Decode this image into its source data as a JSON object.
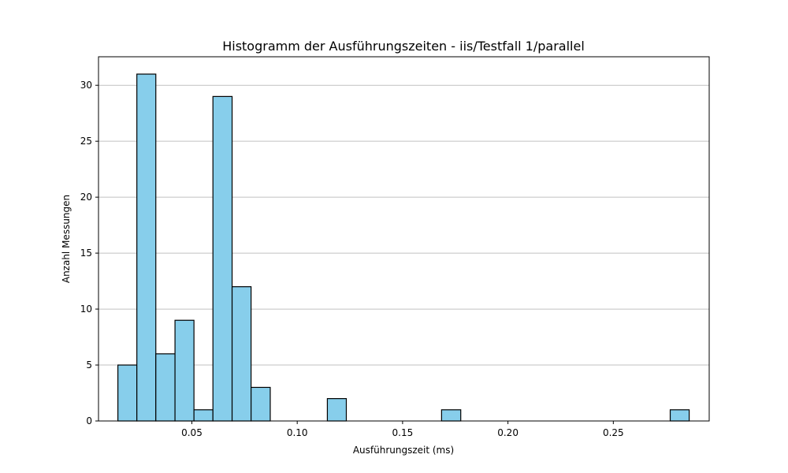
{
  "chart_data": {
    "type": "bar",
    "title": "Histogramm der Ausführungszeiten - iis/Testfall 1/parallel",
    "xlabel": "Ausführungszeit (ms)",
    "ylabel": "Anzahl Messungen",
    "xlim": [
      0.0057,
      0.2955
    ],
    "ylim": [
      0,
      32.55
    ],
    "xticks": [
      0.05,
      0.1,
      0.15,
      0.2,
      0.25
    ],
    "xtick_labels": [
      "0.05",
      "0.10",
      "0.15",
      "0.20",
      "0.25"
    ],
    "yticks": [
      0,
      5,
      10,
      15,
      20,
      25,
      30
    ],
    "ytick_labels": [
      "0",
      "5",
      "10",
      "15",
      "20",
      "25",
      "30"
    ],
    "grid": "y",
    "colors": {
      "bar_fill": "#87CEEB",
      "bar_edge": "#000000",
      "grid": "#c0c0c0"
    },
    "bins": [
      {
        "x0": 0.0149,
        "x1": 0.0239,
        "value": 5
      },
      {
        "x0": 0.0239,
        "x1": 0.0329,
        "value": 31
      },
      {
        "x0": 0.0329,
        "x1": 0.042,
        "value": 6
      },
      {
        "x0": 0.042,
        "x1": 0.051,
        "value": 9
      },
      {
        "x0": 0.051,
        "x1": 0.06,
        "value": 1
      },
      {
        "x0": 0.06,
        "x1": 0.0691,
        "value": 29
      },
      {
        "x0": 0.0691,
        "x1": 0.0781,
        "value": 12
      },
      {
        "x0": 0.0781,
        "x1": 0.0872,
        "value": 3
      },
      {
        "x0": 0.0872,
        "x1": 0.0962,
        "value": 0
      },
      {
        "x0": 0.0962,
        "x1": 0.1052,
        "value": 0
      },
      {
        "x0": 0.1052,
        "x1": 0.1143,
        "value": 0
      },
      {
        "x0": 0.1143,
        "x1": 0.1233,
        "value": 2
      },
      {
        "x0": 0.1233,
        "x1": 0.1324,
        "value": 0
      },
      {
        "x0": 0.1324,
        "x1": 0.1414,
        "value": 0
      },
      {
        "x0": 0.1414,
        "x1": 0.1504,
        "value": 0
      },
      {
        "x0": 0.1504,
        "x1": 0.1595,
        "value": 0
      },
      {
        "x0": 0.1595,
        "x1": 0.1685,
        "value": 0
      },
      {
        "x0": 0.1685,
        "x1": 0.1776,
        "value": 1
      },
      {
        "x0": 0.1776,
        "x1": 0.1866,
        "value": 0
      },
      {
        "x0": 0.1866,
        "x1": 0.1956,
        "value": 0
      },
      {
        "x0": 0.1956,
        "x1": 0.2047,
        "value": 0
      },
      {
        "x0": 0.2047,
        "x1": 0.2137,
        "value": 0
      },
      {
        "x0": 0.2137,
        "x1": 0.2228,
        "value": 0
      },
      {
        "x0": 0.2228,
        "x1": 0.2318,
        "value": 0
      },
      {
        "x0": 0.2318,
        "x1": 0.2408,
        "value": 0
      },
      {
        "x0": 0.2408,
        "x1": 0.2499,
        "value": 0
      },
      {
        "x0": 0.2499,
        "x1": 0.2589,
        "value": 0
      },
      {
        "x0": 0.2589,
        "x1": 0.268,
        "value": 0
      },
      {
        "x0": 0.268,
        "x1": 0.277,
        "value": 0
      },
      {
        "x0": 0.277,
        "x1": 0.286,
        "value": 1
      }
    ]
  }
}
